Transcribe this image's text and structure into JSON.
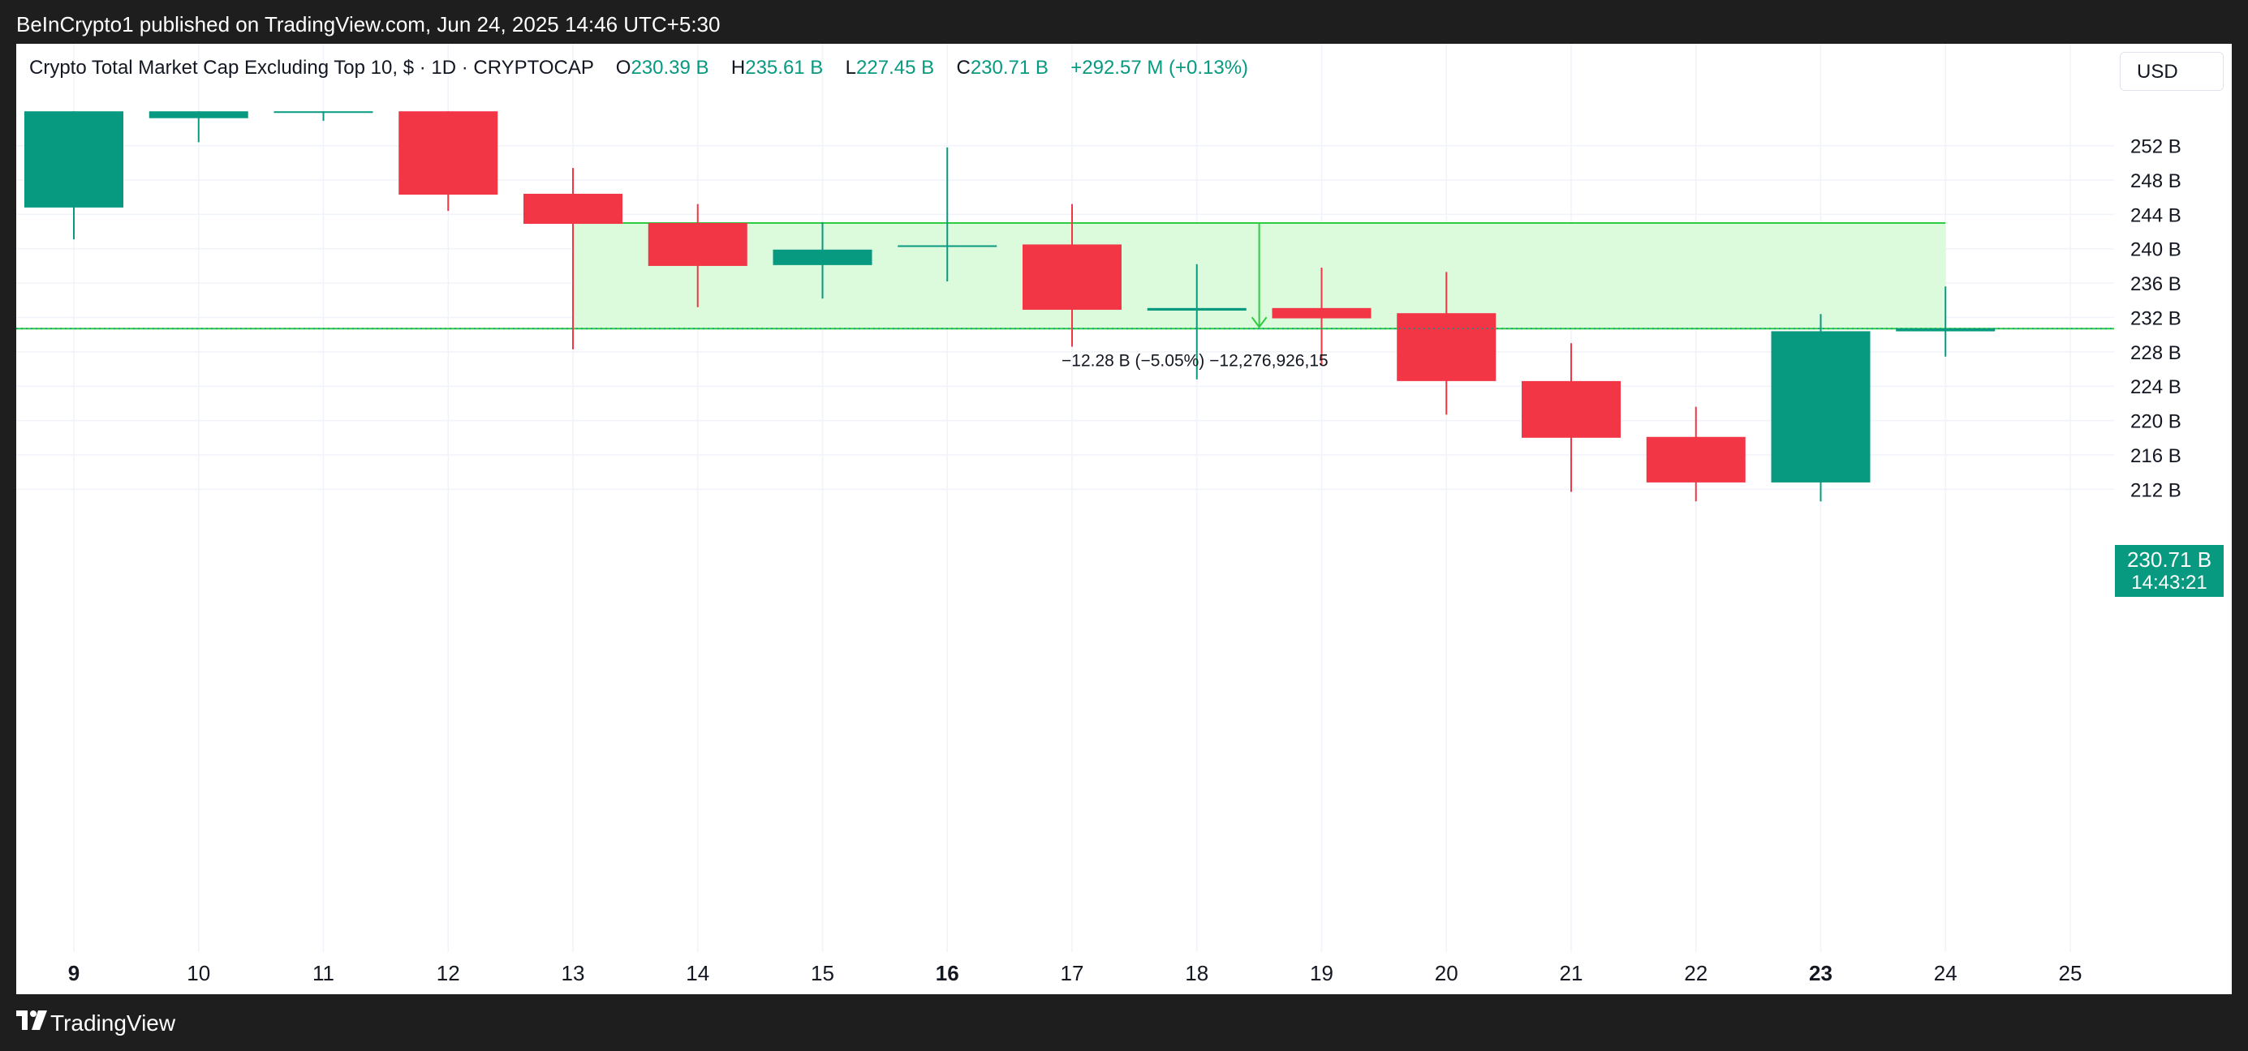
{
  "header": {
    "publish_text": "BeInCrypto1 published on TradingView.com, Jun 24, 2025 14:46 UTC+5:30"
  },
  "legend": {
    "title": "Crypto Total Market Cap Excluding Top 10, $ · 1D · CRYPTOCAP",
    "o_label": "O",
    "o_value": "230.39 B",
    "h_label": "H",
    "h_value": "235.61 B",
    "l_label": "L",
    "l_value": "227.45 B",
    "c_label": "C",
    "c_value": "230.71 B",
    "change": "+292.57 M (+0.13%)"
  },
  "currency": "USD",
  "price_tag": {
    "price": "230.71 B",
    "countdown": "14:43:21"
  },
  "footer": {
    "brand": "TradingView"
  },
  "colors": {
    "up": "#089981",
    "down": "#f23645",
    "zone_fill": "#dcfadc",
    "zone_line": "#2ecc40"
  },
  "chart_data": {
    "type": "candlestick",
    "unit": "B",
    "ylim": [
      209.5,
      254.5
    ],
    "y_ticks": [
      212,
      216,
      220,
      224,
      228,
      232,
      236,
      240,
      244,
      248,
      252
    ],
    "y_tick_labels": [
      "212 B",
      "216 B",
      "220 B",
      "224 B",
      "228 B",
      "232 B",
      "236 B",
      "240 B",
      "244 B",
      "248 B",
      "252 B"
    ],
    "x_labels": [
      {
        "d": 9,
        "label": "9",
        "bold": true
      },
      {
        "d": 10,
        "label": "10",
        "bold": false
      },
      {
        "d": 11,
        "label": "11",
        "bold": false
      },
      {
        "d": 12,
        "label": "12",
        "bold": false
      },
      {
        "d": 13,
        "label": "13",
        "bold": false
      },
      {
        "d": 14,
        "label": "14",
        "bold": false
      },
      {
        "d": 15,
        "label": "15",
        "bold": false
      },
      {
        "d": 16,
        "label": "16",
        "bold": true
      },
      {
        "d": 17,
        "label": "17",
        "bold": false
      },
      {
        "d": 18,
        "label": "18",
        "bold": false
      },
      {
        "d": 19,
        "label": "19",
        "bold": false
      },
      {
        "d": 20,
        "label": "20",
        "bold": false
      },
      {
        "d": 21,
        "label": "21",
        "bold": false
      },
      {
        "d": 22,
        "label": "22",
        "bold": false
      },
      {
        "d": 23,
        "label": "23",
        "bold": true
      },
      {
        "d": 24,
        "label": "24",
        "bold": false
      },
      {
        "d": 25,
        "label": "25",
        "bold": false
      }
    ],
    "candles": [
      {
        "d": 9,
        "o": 244.8,
        "h": 256.0,
        "l": 241.1,
        "c": 256.0
      },
      {
        "d": 10,
        "o": 255.2,
        "h": 256.0,
        "l": 252.4,
        "c": 256.0
      },
      {
        "d": 11,
        "o": 256.0,
        "h": 256.0,
        "l": 254.9,
        "c": 256.0
      },
      {
        "d": 12,
        "o": 256.0,
        "h": 256.0,
        "l": 244.4,
        "c": 246.3
      },
      {
        "d": 13,
        "o": 246.4,
        "h": 249.4,
        "l": 228.3,
        "c": 242.9
      },
      {
        "d": 14,
        "o": 243.0,
        "h": 245.2,
        "l": 233.2,
        "c": 238.0
      },
      {
        "d": 15,
        "o": 238.1,
        "h": 243.1,
        "l": 234.2,
        "c": 239.9
      },
      {
        "d": 16,
        "o": 240.4,
        "h": 251.8,
        "l": 236.2,
        "c": 240.4
      },
      {
        "d": 17,
        "o": 240.5,
        "h": 245.2,
        "l": 228.6,
        "c": 232.9
      },
      {
        "d": 18,
        "o": 232.8,
        "h": 238.2,
        "l": 224.8,
        "c": 233.1
      },
      {
        "d": 19,
        "o": 233.1,
        "h": 237.8,
        "l": 226.5,
        "c": 231.9
      },
      {
        "d": 20,
        "o": 232.5,
        "h": 237.3,
        "l": 220.7,
        "c": 224.6
      },
      {
        "d": 21,
        "o": 224.6,
        "h": 229.0,
        "l": 211.7,
        "c": 218.0
      },
      {
        "d": 22,
        "o": 218.1,
        "h": 221.6,
        "l": 210.6,
        "c": 212.8
      },
      {
        "d": 23,
        "o": 212.8,
        "h": 232.4,
        "l": 210.6,
        "c": 230.4
      },
      {
        "d": 24,
        "o": 230.39,
        "h": 235.61,
        "l": 227.45,
        "c": 230.71
      }
    ],
    "range_zone": {
      "d_start": 13,
      "d_end": 24,
      "top": 243.0,
      "bottom": 230.7
    },
    "measure": {
      "d": 18.5,
      "from": 243.0,
      "to": 230.7,
      "label": "−12.28 B (−5.05%) −12,276,926,15"
    },
    "last_price": 230.71
  }
}
